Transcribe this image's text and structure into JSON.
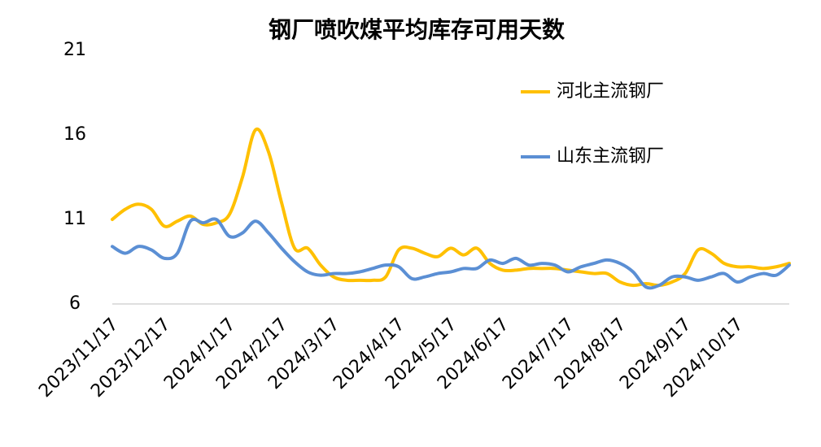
{
  "chart_data": {
    "type": "line",
    "title": "钢厂喷吹煤平均库存可用天数",
    "categories": [
      "2023/11/17",
      null,
      null,
      null,
      "2023/12/17",
      null,
      null,
      null,
      null,
      "2024/1/17",
      null,
      null,
      null,
      "2024/2/17",
      null,
      null,
      null,
      "2024/3/17",
      null,
      null,
      null,
      null,
      "2024/4/17",
      null,
      null,
      null,
      "2024/5/17",
      null,
      null,
      null,
      "2024/6/17",
      null,
      null,
      null,
      null,
      "2024/7/17",
      null,
      null,
      null,
      "2024/8/17",
      null,
      null,
      null,
      null,
      "2024/9/17",
      null,
      null,
      null,
      "2024/10/17",
      null,
      null,
      null,
      null
    ],
    "series": [
      {
        "name": "河北主流钢厂",
        "color": "#ffc000",
        "values": [
          11.0,
          11.6,
          11.9,
          11.6,
          10.6,
          10.9,
          11.2,
          10.7,
          10.8,
          11.3,
          13.5,
          16.3,
          15.0,
          12.0,
          9.3,
          9.3,
          8.3,
          7.6,
          7.4,
          7.4,
          7.4,
          7.6,
          9.2,
          9.3,
          9.0,
          8.8,
          9.3,
          8.9,
          9.3,
          8.4,
          8.0,
          8.0,
          8.1,
          8.1,
          8.1,
          8.0,
          7.9,
          7.8,
          7.8,
          7.3,
          7.1,
          7.2,
          7.1,
          7.3,
          7.8,
          9.2,
          9.0,
          8.4,
          8.2,
          8.2,
          8.1,
          8.2,
          8.4
        ]
      },
      {
        "name": "山东主流钢厂",
        "color": "#5b8fd4",
        "values": [
          9.4,
          9.0,
          9.4,
          9.2,
          8.7,
          9.0,
          10.9,
          10.8,
          11.0,
          10.0,
          10.2,
          10.9,
          10.2,
          9.3,
          8.5,
          7.9,
          7.7,
          7.8,
          7.8,
          7.9,
          8.1,
          8.3,
          8.2,
          7.5,
          7.6,
          7.8,
          7.9,
          8.1,
          8.1,
          8.6,
          8.4,
          8.7,
          8.3,
          8.4,
          8.3,
          7.9,
          8.2,
          8.4,
          8.6,
          8.4,
          7.9,
          7.0,
          7.1,
          7.6,
          7.6,
          7.4,
          7.6,
          7.8,
          7.3,
          7.6,
          7.8,
          7.7,
          8.3
        ]
      }
    ],
    "ylim": [
      6,
      21
    ],
    "yticks": [
      6,
      11,
      16,
      21
    ],
    "grid": false
  }
}
